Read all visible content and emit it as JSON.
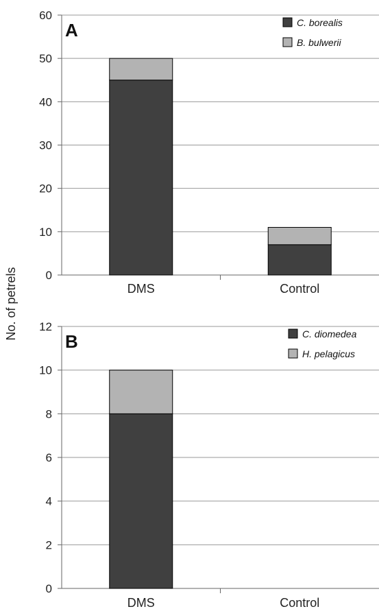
{
  "chart_data": [
    {
      "type": "bar",
      "stacked": true,
      "panel_label": "A",
      "categories": [
        "DMS",
        "Control"
      ],
      "series": [
        {
          "name": "C. borealis",
          "values": [
            45,
            7
          ],
          "color": "#404040"
        },
        {
          "name": "B. bulwerii",
          "values": [
            5,
            4
          ],
          "color": "#b3b3b3"
        }
      ],
      "ylim": [
        0,
        60
      ],
      "yticks": [
        0,
        10,
        20,
        30,
        40,
        50,
        60
      ],
      "grid": true,
      "legend": "top-right"
    },
    {
      "type": "bar",
      "stacked": true,
      "panel_label": "B",
      "categories": [
        "DMS",
        "Control"
      ],
      "series": [
        {
          "name": "C. diomedea",
          "values": [
            8,
            0
          ],
          "color": "#404040"
        },
        {
          "name": "H. pelagicus",
          "values": [
            2,
            0
          ],
          "color": "#b3b3b3"
        }
      ],
      "ylim": [
        0,
        12
      ],
      "yticks": [
        0,
        2,
        4,
        6,
        8,
        10,
        12
      ],
      "grid": true,
      "legend": "top-right"
    }
  ],
  "ylabel": "No. of petrels"
}
